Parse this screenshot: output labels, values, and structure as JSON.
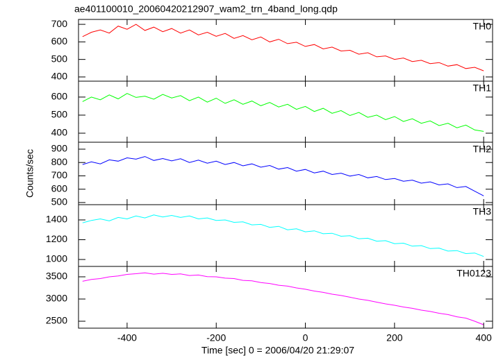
{
  "chart_data": [
    {
      "type": "line",
      "title": "ae401100010_20060420212907_wam2_trn_4band_long.qdp",
      "x": [
        -500,
        -480,
        -460,
        -440,
        -420,
        -400,
        -380,
        -360,
        -340,
        -320,
        -300,
        -280,
        -260,
        -240,
        -220,
        -200,
        -180,
        -160,
        -140,
        -120,
        -100,
        -80,
        -60,
        -40,
        -20,
        0,
        20,
        40,
        60,
        80,
        100,
        120,
        140,
        160,
        180,
        200,
        220,
        240,
        260,
        280,
        300,
        320,
        340,
        360,
        380,
        400
      ],
      "series": [
        {
          "name": "TH0",
          "color": "#ff0000",
          "values": [
            630,
            655,
            668,
            650,
            690,
            672,
            700,
            665,
            684,
            658,
            676,
            650,
            668,
            640,
            655,
            632,
            648,
            620,
            636,
            612,
            628,
            600,
            615,
            590,
            598,
            574,
            585,
            560,
            570,
            548,
            552,
            530,
            538,
            515,
            520,
            500,
            508,
            488,
            495,
            476,
            482,
            462,
            470,
            448,
            455,
            435
          ]
        }
      ],
      "xlim": [
        -509,
        420
      ],
      "xticks": [
        -400,
        -200,
        0,
        200,
        400
      ],
      "ylim": [
        376,
        728
      ],
      "yticks": [
        400,
        500,
        600,
        700
      ]
    },
    {
      "type": "line",
      "x": [
        -500,
        -480,
        -460,
        -440,
        -420,
        -400,
        -380,
        -360,
        -340,
        -320,
        -300,
        -280,
        -260,
        -240,
        -220,
        -200,
        -180,
        -160,
        -140,
        -120,
        -100,
        -80,
        -60,
        -40,
        -20,
        0,
        20,
        40,
        60,
        80,
        100,
        120,
        140,
        160,
        180,
        200,
        220,
        240,
        260,
        280,
        300,
        320,
        340,
        360,
        380,
        400
      ],
      "series": [
        {
          "name": "TH1",
          "color": "#00ff00",
          "values": [
            575,
            600,
            585,
            612,
            590,
            620,
            598,
            605,
            588,
            615,
            595,
            608,
            580,
            600,
            572,
            594,
            565,
            585,
            560,
            578,
            552,
            570,
            545,
            560,
            532,
            548,
            520,
            538,
            510,
            525,
            498,
            515,
            488,
            500,
            475,
            492,
            465,
            480,
            455,
            468,
            442,
            455,
            430,
            445,
            418,
            410
          ]
        }
      ],
      "xlim": [
        -509,
        420
      ],
      "xticks": [
        -400,
        -200,
        0,
        200,
        400
      ],
      "ylim": [
        350,
        688
      ],
      "yticks": [
        400,
        500,
        600
      ]
    },
    {
      "type": "line",
      "ylabel": "Counts/sec",
      "x": [
        -500,
        -480,
        -460,
        -440,
        -420,
        -400,
        -380,
        -360,
        -340,
        -320,
        -300,
        -280,
        -260,
        -240,
        -220,
        -200,
        -180,
        -160,
        -140,
        -120,
        -100,
        -80,
        -60,
        -40,
        -20,
        0,
        20,
        40,
        60,
        80,
        100,
        120,
        140,
        160,
        180,
        200,
        220,
        240,
        260,
        280,
        300,
        320,
        340,
        360,
        380,
        400
      ],
      "series": [
        {
          "name": "TH2",
          "color": "#0000ff",
          "values": [
            785,
            805,
            790,
            820,
            810,
            835,
            825,
            845,
            815,
            830,
            812,
            828,
            800,
            818,
            795,
            810,
            785,
            800,
            775,
            790,
            765,
            778,
            750,
            762,
            735,
            748,
            722,
            735,
            710,
            720,
            698,
            710,
            685,
            695,
            672,
            680,
            660,
            668,
            645,
            655,
            632,
            640,
            612,
            620,
            585,
            550
          ]
        }
      ],
      "xlim": [
        -509,
        420
      ],
      "xticks": [
        -400,
        -200,
        0,
        200,
        400
      ],
      "ylim": [
        484,
        952
      ],
      "yticks": [
        500,
        600,
        700,
        800,
        900
      ]
    },
    {
      "type": "line",
      "x": [
        -500,
        -480,
        -460,
        -440,
        -420,
        -400,
        -380,
        -360,
        -340,
        -320,
        -300,
        -280,
        -260,
        -240,
        -220,
        -200,
        -180,
        -160,
        -140,
        -120,
        -100,
        -80,
        -60,
        -40,
        -20,
        0,
        20,
        40,
        60,
        80,
        100,
        120,
        140,
        160,
        180,
        200,
        220,
        240,
        260,
        280,
        300,
        320,
        340,
        360,
        380,
        400
      ],
      "series": [
        {
          "name": "TH3",
          "color": "#00ffff",
          "values": [
            1370,
            1395,
            1410,
            1390,
            1425,
            1410,
            1440,
            1420,
            1450,
            1430,
            1445,
            1425,
            1440,
            1410,
            1420,
            1395,
            1400,
            1375,
            1380,
            1350,
            1355,
            1325,
            1335,
            1300,
            1310,
            1280,
            1290,
            1260,
            1265,
            1235,
            1240,
            1210,
            1215,
            1185,
            1190,
            1160,
            1165,
            1135,
            1140,
            1110,
            1115,
            1085,
            1090,
            1060,
            1065,
            1030
          ]
        }
      ],
      "xlim": [
        -509,
        420
      ],
      "xticks": [
        -400,
        -200,
        0,
        200,
        400
      ],
      "ylim": [
        930,
        1554
      ],
      "yticks": [
        1000,
        1200,
        1400
      ]
    },
    {
      "type": "line",
      "xlabel": "Time [sec] 0 = 2006/04/20 21:29:07",
      "x": [
        -500,
        -480,
        -460,
        -440,
        -420,
        -400,
        -380,
        -360,
        -340,
        -320,
        -300,
        -280,
        -260,
        -240,
        -220,
        -200,
        -180,
        -160,
        -140,
        -120,
        -100,
        -80,
        -60,
        -40,
        -20,
        0,
        20,
        40,
        60,
        80,
        100,
        120,
        140,
        160,
        180,
        200,
        220,
        240,
        260,
        280,
        300,
        320,
        340,
        360,
        380,
        400
      ],
      "series": [
        {
          "name": "TH0123",
          "color": "#ff00ff",
          "values": [
            3400,
            3440,
            3460,
            3500,
            3520,
            3555,
            3570,
            3590,
            3560,
            3580,
            3555,
            3565,
            3530,
            3540,
            3505,
            3500,
            3470,
            3460,
            3420,
            3410,
            3370,
            3350,
            3310,
            3290,
            3250,
            3220,
            3180,
            3150,
            3110,
            3080,
            3040,
            3000,
            2970,
            2930,
            2890,
            2860,
            2820,
            2790,
            2750,
            2720,
            2680,
            2650,
            2600,
            2570,
            2500,
            2420
          ]
        }
      ],
      "xlim": [
        -509,
        420
      ],
      "xticks": [
        -400,
        -200,
        0,
        200,
        400
      ],
      "ylim": [
        2344,
        3734
      ],
      "yticks": [
        2500,
        3000,
        3500
      ]
    }
  ]
}
